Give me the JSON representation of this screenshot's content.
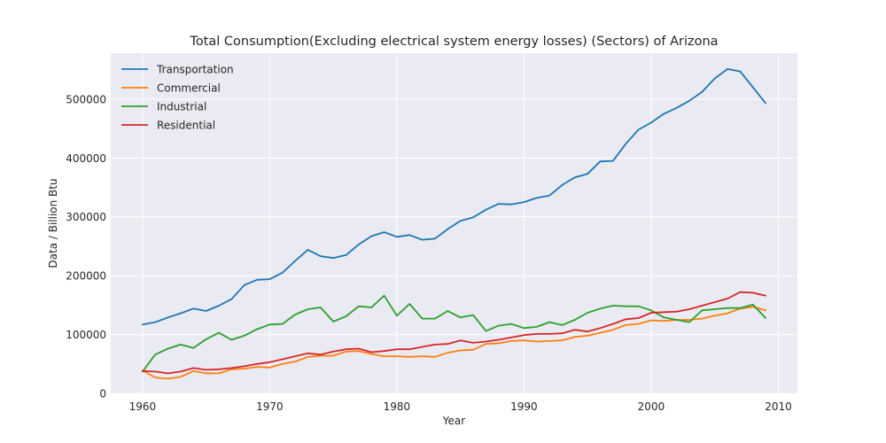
{
  "chart_data": {
    "type": "line",
    "title": "Total Consumption(Excluding electrical system energy losses) (Sectors) of Arizona",
    "xlabel": "Year",
    "ylabel": "Data / Billion Btu",
    "xlim": [
      1957.5,
      2011.5
    ],
    "ylim": [
      0,
      578000
    ],
    "xticks": [
      1960,
      1970,
      1980,
      1990,
      2000,
      2010
    ],
    "yticks": [
      0,
      100000,
      200000,
      300000,
      400000,
      500000
    ],
    "grid": true,
    "legend_position": "top-left",
    "x": [
      1960,
      1961,
      1962,
      1963,
      1964,
      1965,
      1966,
      1967,
      1968,
      1969,
      1970,
      1971,
      1972,
      1973,
      1974,
      1975,
      1976,
      1977,
      1978,
      1979,
      1980,
      1981,
      1982,
      1983,
      1984,
      1985,
      1986,
      1987,
      1988,
      1989,
      1990,
      1991,
      1992,
      1993,
      1994,
      1995,
      1996,
      1997,
      1998,
      1999,
      2000,
      2001,
      2002,
      2003,
      2004,
      2005,
      2006,
      2007,
      2008,
      2009
    ],
    "series": [
      {
        "name": "Transportation",
        "color": "#1f77b4",
        "values": [
          117000,
          121000,
          129000,
          136000,
          144000,
          140000,
          149000,
          160000,
          184000,
          193000,
          194000,
          205000,
          225000,
          244000,
          233000,
          230000,
          235000,
          253000,
          267000,
          274000,
          266000,
          269000,
          261000,
          263000,
          279000,
          293000,
          299000,
          312000,
          322000,
          321000,
          325000,
          332000,
          336000,
          354000,
          367000,
          373000,
          394000,
          395000,
          424000,
          448000,
          460000,
          475000,
          485000,
          497000,
          512000,
          535000,
          551000,
          547000,
          520000,
          493000
        ]
      },
      {
        "name": "Commercial",
        "color": "#ff7f0e",
        "values": [
          39000,
          27000,
          25000,
          28000,
          38000,
          34000,
          34000,
          41000,
          42000,
          45000,
          44000,
          50000,
          54000,
          62000,
          64000,
          64000,
          71000,
          72000,
          67000,
          63000,
          63000,
          62000,
          63000,
          62000,
          69000,
          73000,
          74000,
          84000,
          85000,
          89000,
          90000,
          88000,
          89000,
          90000,
          96000,
          98000,
          103000,
          108000,
          116000,
          118000,
          124000,
          123000,
          125000,
          125000,
          127000,
          132000,
          136000,
          144000,
          147000,
          141000
        ]
      },
      {
        "name": "Industrial",
        "color": "#2ca02c",
        "values": [
          37000,
          66000,
          76000,
          83000,
          77000,
          92000,
          103000,
          91000,
          98000,
          109000,
          117000,
          118000,
          134000,
          143000,
          146000,
          122000,
          131000,
          148000,
          146000,
          166000,
          132000,
          152000,
          127000,
          127000,
          140000,
          129000,
          133000,
          106000,
          115000,
          118000,
          111000,
          113000,
          121000,
          116000,
          125000,
          137000,
          144000,
          149000,
          148000,
          148000,
          141000,
          129000,
          125000,
          121000,
          141000,
          143000,
          145000,
          145000,
          151000,
          128000
        ]
      },
      {
        "name": "Residential",
        "color": "#d62728",
        "values": [
          38000,
          37000,
          34000,
          37000,
          43000,
          40000,
          41000,
          43000,
          46000,
          50000,
          53000,
          58000,
          63000,
          68000,
          66000,
          71000,
          75000,
          76000,
          70000,
          72000,
          75000,
          75000,
          79000,
          83000,
          84000,
          90000,
          86000,
          88000,
          91000,
          95000,
          99000,
          101000,
          101000,
          102000,
          108000,
          105000,
          111000,
          118000,
          126000,
          128000,
          137000,
          138000,
          139000,
          143000,
          149000,
          155000,
          161000,
          172000,
          171000,
          166000
        ]
      }
    ]
  }
}
